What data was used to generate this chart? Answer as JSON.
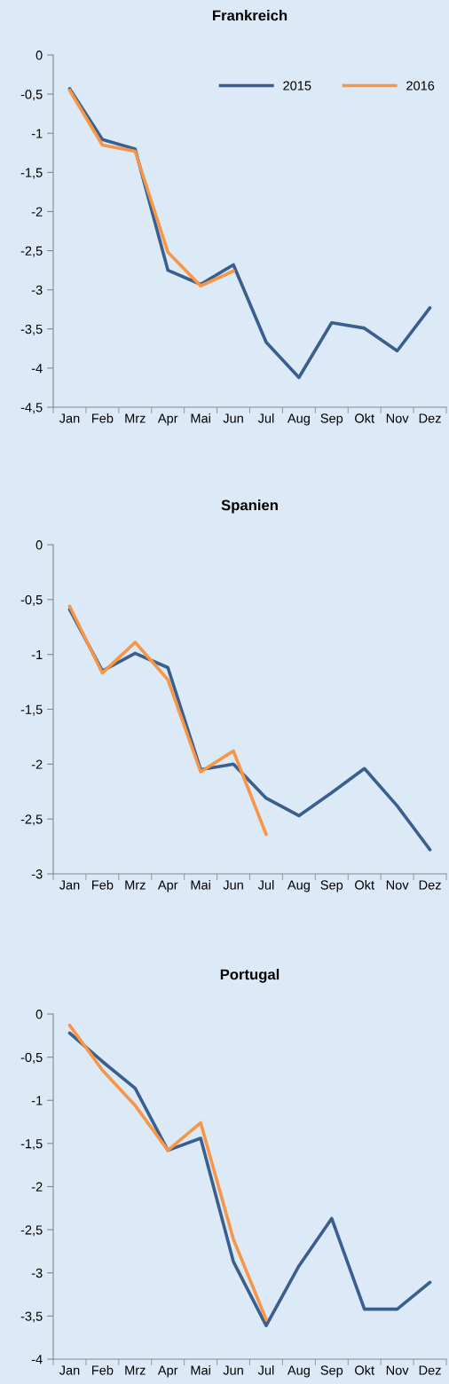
{
  "chart_data": [
    {
      "type": "line",
      "title": "Frankreich",
      "categories": [
        "Jan",
        "Feb",
        "Mrz",
        "Apr",
        "Mai",
        "Jun",
        "Jul",
        "Aug",
        "Sep",
        "Okt",
        "Nov",
        "Dez"
      ],
      "series": [
        {
          "name": "2015",
          "color": "#3a5f8f",
          "values": [
            -0.43,
            -1.08,
            -1.2,
            -2.75,
            -2.93,
            -2.68,
            -3.67,
            -4.12,
            -3.42,
            -3.49,
            -3.78,
            -3.23
          ]
        },
        {
          "name": "2016",
          "color": "#f79646",
          "values": [
            -0.45,
            -1.15,
            -1.23,
            -2.52,
            -2.95,
            -2.76,
            null,
            null,
            null,
            null,
            null,
            null
          ]
        }
      ],
      "ylim": [
        -4.5,
        0
      ],
      "yticks": [
        0,
        {
          "value": -0.5,
          "label": "-0,5"
        },
        -1,
        {
          "value": -1.5,
          "label": "-1,5"
        },
        -2,
        {
          "value": -2.5,
          "label": "-2,5"
        },
        -3,
        {
          "value": -3.5,
          "label": "-3,5"
        },
        -4,
        {
          "value": -4.5,
          "label": "-4,5"
        }
      ],
      "grid": false,
      "legend": "top right"
    },
    {
      "type": "line",
      "title": "Spanien",
      "categories": [
        "Jan",
        "Feb",
        "Mrz",
        "Apr",
        "Mai",
        "Jun",
        "Jul",
        "Aug",
        "Sep",
        "Okt",
        "Nov",
        "Dez"
      ],
      "series": [
        {
          "color": "#3a5f8f",
          "values": [
            -0.59,
            -1.15,
            -0.99,
            -1.12,
            -2.05,
            -2.0,
            -2.31,
            -2.47,
            -2.26,
            -2.04,
            -2.38,
            -2.78
          ]
        },
        {
          "color": "#f79646",
          "values": [
            -0.56,
            -1.17,
            -0.89,
            -1.23,
            -2.07,
            -1.88,
            -2.64,
            null,
            null,
            null,
            null,
            null
          ]
        }
      ],
      "ylim": [
        -3,
        0
      ],
      "yticks": [
        0,
        {
          "value": -0.5,
          "label": "-0,5"
        },
        -1,
        {
          "value": -1.5,
          "label": "-1,5"
        },
        -2,
        {
          "value": -2.5,
          "label": "-2,5"
        },
        -3
      ],
      "grid": false,
      "legend": false
    },
    {
      "type": "line",
      "title": "Portugal",
      "categories": [
        "Jan",
        "Feb",
        "Mrz",
        "Apr",
        "Mai",
        "Jun",
        "Jul",
        "Aug",
        "Sep",
        "Okt",
        "Nov",
        "Dez"
      ],
      "series": [
        {
          "color": "#3a5f8f",
          "values": [
            -0.22,
            -0.55,
            -0.86,
            -1.58,
            -1.44,
            -2.87,
            -3.61,
            -2.92,
            -2.37,
            -3.42,
            -3.42,
            -3.11
          ]
        },
        {
          "color": "#f79646",
          "values": [
            -0.13,
            -0.65,
            -1.06,
            -1.58,
            -1.26,
            -2.61,
            -3.54,
            null,
            null,
            null,
            null,
            null
          ]
        }
      ],
      "ylim": [
        -4,
        0
      ],
      "yticks": [
        0,
        {
          "value": -0.5,
          "label": "-0,5"
        },
        -1,
        {
          "value": -1.5,
          "label": "-1,5"
        },
        -2,
        {
          "value": -2.5,
          "label": "-2,5"
        },
        -3,
        {
          "value": -3.5,
          "label": "-3,5"
        },
        -4
      ],
      "grid": false,
      "legend": false
    }
  ]
}
